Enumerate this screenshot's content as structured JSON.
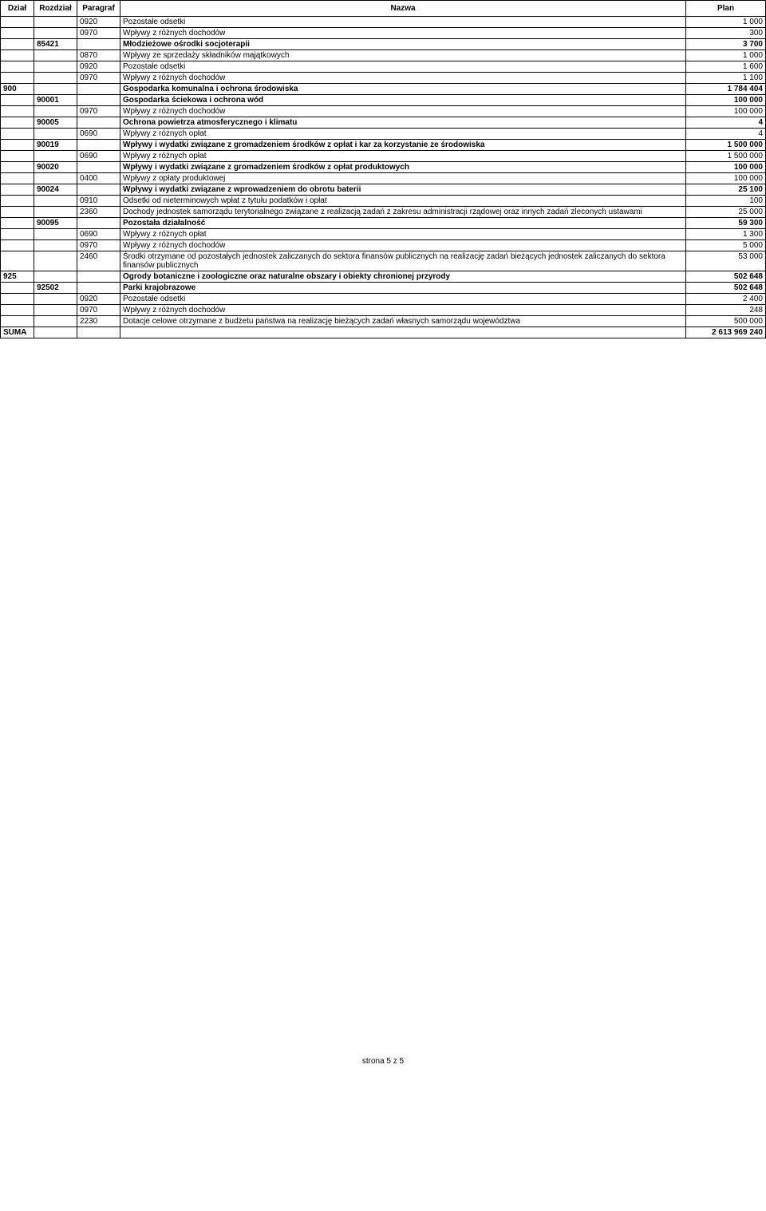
{
  "headers": {
    "dzial": "Dział",
    "rozdzial": "Rozdział",
    "paragraf": "Paragraf",
    "nazwa": "Nazwa",
    "plan": "Plan"
  },
  "rows": [
    {
      "dzial": "",
      "rozdzial": "",
      "paragraf": "0920",
      "nazwa": "Pozostałe odsetki",
      "plan": "1 000",
      "bold": false
    },
    {
      "dzial": "",
      "rozdzial": "",
      "paragraf": "0970",
      "nazwa": "Wpływy z różnych dochodów",
      "plan": "300",
      "bold": false
    },
    {
      "dzial": "",
      "rozdzial": "85421",
      "paragraf": "",
      "nazwa": "Młodzieżowe ośrodki socjoterapii",
      "plan": "3 700",
      "bold": true
    },
    {
      "dzial": "",
      "rozdzial": "",
      "paragraf": "0870",
      "nazwa": "Wpływy ze sprzedaży składników majątkowych",
      "plan": "1 000",
      "bold": false
    },
    {
      "dzial": "",
      "rozdzial": "",
      "paragraf": "0920",
      "nazwa": "Pozostałe odsetki",
      "plan": "1 600",
      "bold": false
    },
    {
      "dzial": "",
      "rozdzial": "",
      "paragraf": "0970",
      "nazwa": "Wpływy z różnych dochodów",
      "plan": "1 100",
      "bold": false
    },
    {
      "dzial": "900",
      "rozdzial": "",
      "paragraf": "",
      "nazwa": "Gospodarka komunalna i ochrona środowiska",
      "plan": "1 784 404",
      "bold": true
    },
    {
      "dzial": "",
      "rozdzial": "90001",
      "paragraf": "",
      "nazwa": "Gospodarka ściekowa i ochrona wód",
      "plan": "100 000",
      "bold": true
    },
    {
      "dzial": "",
      "rozdzial": "",
      "paragraf": "0970",
      "nazwa": "Wpływy z różnych dochodów",
      "plan": "100 000",
      "bold": false
    },
    {
      "dzial": "",
      "rozdzial": "90005",
      "paragraf": "",
      "nazwa": "Ochrona powietrza atmosferycznego i klimatu",
      "plan": "4",
      "bold": true
    },
    {
      "dzial": "",
      "rozdzial": "",
      "paragraf": "0690",
      "nazwa": "Wpływy z różnych opłat",
      "plan": "4",
      "bold": false
    },
    {
      "dzial": "",
      "rozdzial": "90019",
      "paragraf": "",
      "nazwa": "Wpływy i wydatki związane z gromadzeniem środków z opłat i kar za korzystanie ze środowiska",
      "plan": "1 500 000",
      "bold": true
    },
    {
      "dzial": "",
      "rozdzial": "",
      "paragraf": "0690",
      "nazwa": "Wpływy z różnych opłat",
      "plan": "1 500 000",
      "bold": false
    },
    {
      "dzial": "",
      "rozdzial": "90020",
      "paragraf": "",
      "nazwa": "Wpływy i wydatki związane z gromadzeniem środków z opłat produktowych",
      "plan": "100 000",
      "bold": true
    },
    {
      "dzial": "",
      "rozdzial": "",
      "paragraf": "0400",
      "nazwa": "Wpływy z opłaty produktowej",
      "plan": "100 000",
      "bold": false
    },
    {
      "dzial": "",
      "rozdzial": "90024",
      "paragraf": "",
      "nazwa": "Wpływy i wydatki związane z wprowadzeniem do obrotu baterii",
      "plan": "25 100",
      "bold": true
    },
    {
      "dzial": "",
      "rozdzial": "",
      "paragraf": "0910",
      "nazwa": "Odsetki od nieterminowych wpłat z tytułu podatków i opłat",
      "plan": "100",
      "bold": false
    },
    {
      "dzial": "",
      "rozdzial": "",
      "paragraf": "2360",
      "nazwa": "Dochody jednostek samorządu terytorialnego związane z realizacją zadań z zakresu administracji rządowej oraz innych zadań zleconych ustawami",
      "plan": "25 000",
      "bold": false
    },
    {
      "dzial": "",
      "rozdzial": "90095",
      "paragraf": "",
      "nazwa": "Pozostała działalność",
      "plan": "59 300",
      "bold": true
    },
    {
      "dzial": "",
      "rozdzial": "",
      "paragraf": "0690",
      "nazwa": "Wpływy z różnych opłat",
      "plan": "1 300",
      "bold": false
    },
    {
      "dzial": "",
      "rozdzial": "",
      "paragraf": "0970",
      "nazwa": "Wpływy z różnych dochodów",
      "plan": "5 000",
      "bold": false
    },
    {
      "dzial": "",
      "rozdzial": "",
      "paragraf": "2460",
      "nazwa": "Środki otrzymane od pozostałych jednostek zaliczanych do sektora finansów publicznych na realizację zadań bieżących jednostek zaliczanych do sektora finansów publicznych",
      "plan": "53 000",
      "bold": false
    },
    {
      "dzial": "925",
      "rozdzial": "",
      "paragraf": "",
      "nazwa": "Ogrody botaniczne i zoologiczne oraz naturalne obszary i obiekty chronionej przyrody",
      "plan": "502 648",
      "bold": true
    },
    {
      "dzial": "",
      "rozdzial": "92502",
      "paragraf": "",
      "nazwa": "Parki krajobrazowe",
      "plan": "502 648",
      "bold": true
    },
    {
      "dzial": "",
      "rozdzial": "",
      "paragraf": "0920",
      "nazwa": "Pozostałe odsetki",
      "plan": "2 400",
      "bold": false
    },
    {
      "dzial": "",
      "rozdzial": "",
      "paragraf": "0970",
      "nazwa": "Wpływy z różnych dochodów",
      "plan": "248",
      "bold": false
    },
    {
      "dzial": "",
      "rozdzial": "",
      "paragraf": "2230",
      "nazwa": "Dotacje celowe otrzymane z budżetu państwa na realizację bieżących zadań własnych samorządu województwa",
      "plan": "500 000",
      "bold": false
    }
  ],
  "suma": {
    "label": "SUMA",
    "value": "2 613 969 240"
  },
  "footer": "strona 5 z 5"
}
